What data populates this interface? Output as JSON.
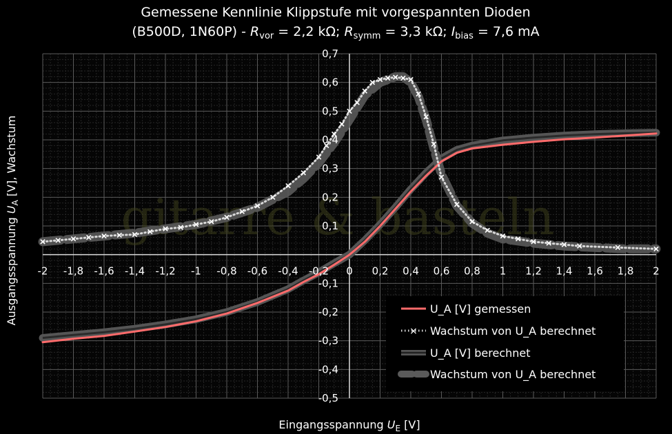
{
  "chart_data": {
    "type": "line",
    "title": {
      "line1": "Gemessene Kennlinie Klippstufe mit vorgespannten Dioden",
      "line2_prefix": "(B500D, 1N60P) - ",
      "r_vor_sym": "R",
      "r_vor_sub": "vor",
      "r_vor_val": " = 2,2 kΩ; ",
      "r_symm_sym": "R",
      "r_symm_sub": "symm",
      "r_symm_val": " = 3,3 kΩ; ",
      "i_bias_sym": "I",
      "i_bias_sub": "bias",
      "i_bias_val": " = 7,6 mA"
    },
    "xlabel": {
      "text": "Eingangsspannung ",
      "sym": "U",
      "sub": "E",
      "unit": " [V]"
    },
    "ylabel": {
      "text": "Ausgangsspannung ",
      "sym": "U",
      "sub": "A",
      "unit": " [V], Wachstum"
    },
    "xlim": [
      -2,
      2
    ],
    "ylim": [
      -0.5,
      0.7
    ],
    "x_ticks": [
      {
        "v": -2,
        "label": "-2"
      },
      {
        "v": -1.8,
        "label": "-1,8"
      },
      {
        "v": -1.6,
        "label": "-1,6"
      },
      {
        "v": -1.4,
        "label": "-1,4"
      },
      {
        "v": -1.2,
        "label": "-1,2"
      },
      {
        "v": -1,
        "label": "-1"
      },
      {
        "v": -0.8,
        "label": "-0,8"
      },
      {
        "v": -0.6,
        "label": "-0,6"
      },
      {
        "v": -0.4,
        "label": "-0,4"
      },
      {
        "v": -0.2,
        "label": "-0,2"
      },
      {
        "v": 0,
        "label": "0"
      },
      {
        "v": 0.2,
        "label": "0,2"
      },
      {
        "v": 0.4,
        "label": "0,4"
      },
      {
        "v": 0.6,
        "label": "0,6"
      },
      {
        "v": 0.8,
        "label": "0,8"
      },
      {
        "v": 1,
        "label": "1"
      },
      {
        "v": 1.2,
        "label": "1,2"
      },
      {
        "v": 1.4,
        "label": "1,4"
      },
      {
        "v": 1.6,
        "label": "1,6"
      },
      {
        "v": 1.8,
        "label": "1,8"
      },
      {
        "v": 2,
        "label": "2"
      }
    ],
    "y_ticks": [
      {
        "v": 0.7,
        "label": "0,7"
      },
      {
        "v": 0.6,
        "label": "0,6"
      },
      {
        "v": 0.5,
        "label": "0,5"
      },
      {
        "v": 0.4,
        "label": "0,4"
      },
      {
        "v": 0.3,
        "label": "0,3"
      },
      {
        "v": 0.2,
        "label": "0,2"
      },
      {
        "v": 0.1,
        "label": "0,1"
      },
      {
        "v": 0,
        "label": "0"
      },
      {
        "v": -0.1,
        "label": "-0,1"
      },
      {
        "v": -0.2,
        "label": "-0,2"
      },
      {
        "v": -0.3,
        "label": "-0,3"
      },
      {
        "v": -0.4,
        "label": "-0,4"
      },
      {
        "v": -0.5,
        "label": "-0,5"
      }
    ],
    "grid": true,
    "legend_position": "bottom-right",
    "watermark": "gitarre & basteln",
    "series": [
      {
        "name": "U_A [V] gemessen",
        "style": "line",
        "color": "#ff6b6b",
        "x": [
          -2,
          -1.8,
          -1.6,
          -1.4,
          -1.2,
          -1.0,
          -0.8,
          -0.6,
          -0.4,
          -0.3,
          -0.2,
          -0.1,
          0,
          0.1,
          0.2,
          0.3,
          0.4,
          0.5,
          0.6,
          0.7,
          0.8,
          1.0,
          1.2,
          1.4,
          1.6,
          1.8,
          2.0
        ],
        "y": [
          -0.305,
          -0.293,
          -0.283,
          -0.268,
          -0.252,
          -0.232,
          -0.205,
          -0.168,
          -0.125,
          -0.095,
          -0.068,
          -0.035,
          0.0,
          0.045,
          0.1,
          0.16,
          0.22,
          0.275,
          0.325,
          0.355,
          0.37,
          0.383,
          0.393,
          0.402,
          0.408,
          0.415,
          0.422
        ]
      },
      {
        "name": "Wachstum von U_A berechnet",
        "style": "dotted-x",
        "color": "#ffffff",
        "x": [
          -2,
          -1.9,
          -1.8,
          -1.7,
          -1.6,
          -1.5,
          -1.4,
          -1.3,
          -1.2,
          -1.1,
          -1.0,
          -0.9,
          -0.8,
          -0.7,
          -0.6,
          -0.5,
          -0.4,
          -0.3,
          -0.2,
          -0.15,
          -0.1,
          -0.05,
          0.0,
          0.05,
          0.1,
          0.15,
          0.2,
          0.25,
          0.3,
          0.35,
          0.4,
          0.45,
          0.5,
          0.55,
          0.6,
          0.7,
          0.8,
          0.9,
          1.0,
          1.1,
          1.2,
          1.3,
          1.4,
          1.5,
          1.75,
          2.0
        ],
        "y": [
          0.045,
          0.05,
          0.055,
          0.06,
          0.065,
          0.068,
          0.07,
          0.08,
          0.09,
          0.095,
          0.105,
          0.115,
          0.13,
          0.15,
          0.17,
          0.2,
          0.24,
          0.285,
          0.34,
          0.38,
          0.42,
          0.455,
          0.5,
          0.53,
          0.57,
          0.6,
          0.61,
          0.615,
          0.618,
          0.615,
          0.61,
          0.56,
          0.48,
          0.385,
          0.27,
          0.175,
          0.115,
          0.085,
          0.065,
          0.055,
          0.045,
          0.04,
          0.035,
          0.03,
          0.025,
          0.02
        ]
      },
      {
        "name": "U_A [V] berechnet",
        "style": "thick-band",
        "color": "#555555",
        "x": [
          -2,
          -1.8,
          -1.6,
          -1.4,
          -1.2,
          -1.0,
          -0.8,
          -0.6,
          -0.4,
          -0.3,
          -0.2,
          -0.1,
          0,
          0.1,
          0.2,
          0.3,
          0.4,
          0.5,
          0.6,
          0.7,
          0.8,
          1.0,
          1.2,
          1.4,
          1.6,
          1.8,
          2.0
        ],
        "y": [
          -0.29,
          -0.28,
          -0.27,
          -0.258,
          -0.243,
          -0.225,
          -0.2,
          -0.165,
          -0.12,
          -0.09,
          -0.062,
          -0.03,
          0.0,
          0.05,
          0.105,
          0.165,
          0.228,
          0.285,
          0.335,
          0.365,
          0.38,
          0.398,
          0.408,
          0.415,
          0.42,
          0.423,
          0.425
        ]
      },
      {
        "name": "Wachstum von U_A berechnet",
        "style": "thick-dashed",
        "color": "#5a5a5a",
        "x": [
          -2,
          -1.8,
          -1.6,
          -1.4,
          -1.2,
          -1.0,
          -0.8,
          -0.6,
          -0.4,
          -0.3,
          -0.2,
          -0.1,
          0.0,
          0.1,
          0.2,
          0.3,
          0.35,
          0.4,
          0.45,
          0.5,
          0.55,
          0.6,
          0.7,
          0.8,
          0.9,
          1.0,
          1.2,
          1.4,
          1.6,
          1.8,
          2.0
        ],
        "y": [
          0.045,
          0.055,
          0.065,
          0.075,
          0.09,
          0.105,
          0.13,
          0.165,
          0.22,
          0.265,
          0.32,
          0.39,
          0.47,
          0.555,
          0.6,
          0.62,
          0.62,
          0.6,
          0.55,
          0.47,
          0.37,
          0.28,
          0.17,
          0.11,
          0.075,
          0.055,
          0.04,
          0.03,
          0.025,
          0.02,
          0.02
        ]
      }
    ]
  }
}
